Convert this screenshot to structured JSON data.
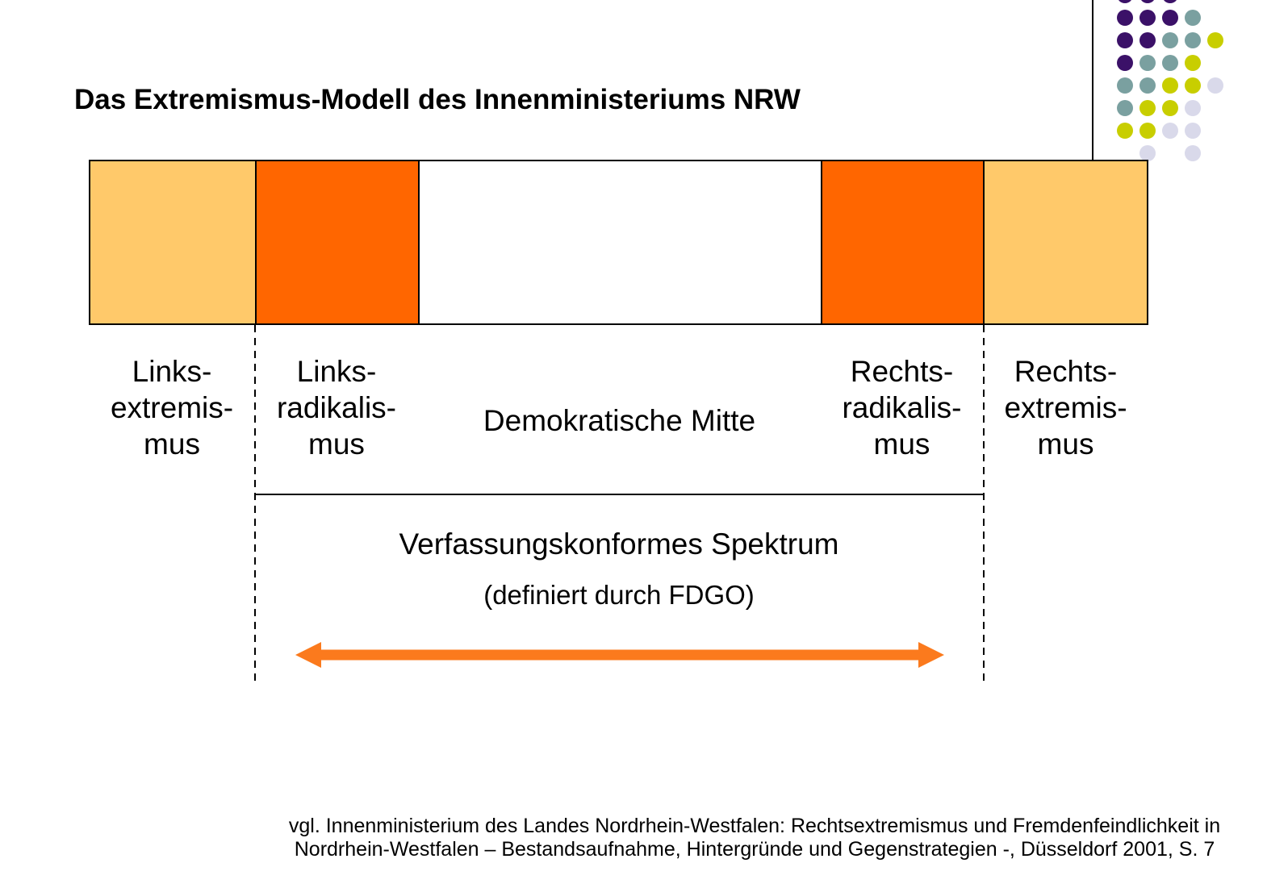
{
  "title": "Das Extremismus-Modell des Innenministeriums NRW",
  "spectrum_bar": {
    "segments": [
      {
        "id": "links-extremismus",
        "label": "Links-\nextremis-\nmus",
        "color": "#FFC96A"
      },
      {
        "id": "links-radikalismus",
        "label": "Links-\nradikalis-\nmus",
        "color": "#FF6600"
      },
      {
        "id": "demokratische-mitte",
        "label": "Demokratische Mitte",
        "color": "#FFFFFF"
      },
      {
        "id": "rechts-radikalismus",
        "label": "Rechts-\nradikalis-\nmus",
        "color": "#FF6600"
      },
      {
        "id": "rechts-extremismus",
        "label": "Rechts-\nextremis-\nmus",
        "color": "#FFC96A"
      }
    ]
  },
  "constitutional_spectrum": {
    "label": "Verfassungskonformes Spektrum",
    "note": "(definiert durch FDGO)"
  },
  "citation": {
    "line1": "vgl. Innenministerium des Landes Nordrhein-Westfalen: Rechtsextremismus und Fremdenfeindlichkeit in",
    "line2": "Nordrhein-Westfalen – Bestandsaufnahme, Hintergründe und Gegenstrategien -, Düsseldorf 2001, S. 7"
  },
  "colors": {
    "light_orange": "#FFC96A",
    "orange": "#FF6600",
    "arrow": "#FB7A1D",
    "line": "#000000",
    "dot_purple": "#3B1168",
    "dot_teal": "#7AA0A0",
    "dot_yellow": "#C8CE00",
    "dot_lavender": "#D9D9EA"
  },
  "decoration": {
    "dot_rows": [
      "PPP..",
      "PPPT.",
      "PPTTY",
      "PTTY.",
      "TTYYL",
      "TYYL.",
      "YYLL.",
      ".L.L."
    ]
  }
}
